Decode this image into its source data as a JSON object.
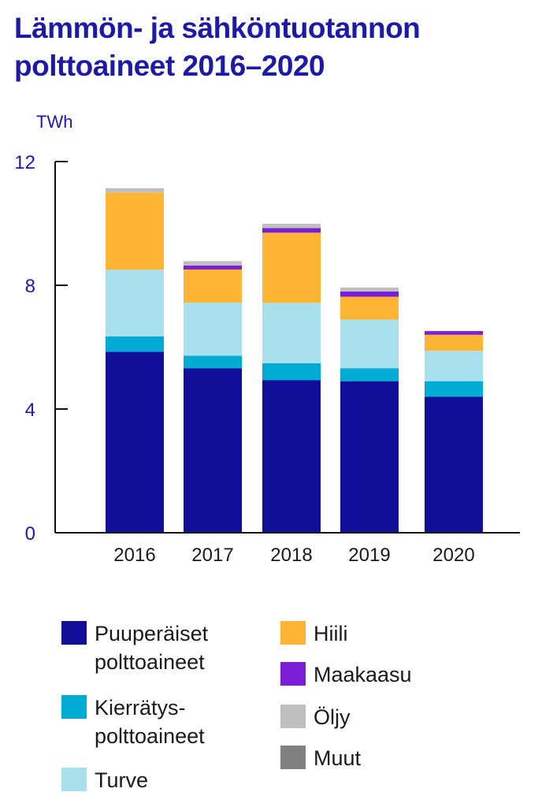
{
  "chart_data": {
    "type": "bar",
    "stacked": true,
    "title_line1": "Lämmön- ja sähköntuotannon",
    "title_line2": "polttoaineet 2016–2020",
    "unit": "TWh",
    "categories": [
      "2016",
      "2017",
      "2018",
      "2019",
      "2020"
    ],
    "y_ticks": [
      "0",
      "4",
      "8",
      "12"
    ],
    "ylim": [
      0,
      12
    ],
    "grid": false,
    "legend_position": "bottom",
    "series": [
      {
        "name": "Puuperäiset polttoaineet",
        "color": "#110e99",
        "values": [
          5.85,
          5.32,
          4.93,
          4.9,
          4.4
        ]
      },
      {
        "name": "Kierrätys-polttoaineet",
        "color": "#00acd3",
        "values": [
          0.5,
          0.4,
          0.55,
          0.42,
          0.5
        ]
      },
      {
        "name": "Turve",
        "color": "#a8e0ee",
        "values": [
          2.15,
          1.72,
          1.95,
          1.57,
          0.98
        ]
      },
      {
        "name": "Hiili",
        "color": "#ffb533",
        "values": [
          2.5,
          1.07,
          2.27,
          0.74,
          0.52
        ]
      },
      {
        "name": "Maakaasu",
        "color": "#7a1fd6",
        "values": [
          0.0,
          0.13,
          0.15,
          0.17,
          0.12
        ]
      },
      {
        "name": "Öljy",
        "color": "#bfbfbf",
        "values": [
          0.14,
          0.14,
          0.14,
          0.13,
          0.0
        ]
      },
      {
        "name": "Muut",
        "color": "#808080",
        "values": [
          0,
          0,
          0,
          0,
          0
        ]
      }
    ]
  },
  "legend": {
    "items": [
      {
        "label_lines": [
          "Puuperäiset",
          "polttoaineet"
        ],
        "color": "#110e99"
      },
      {
        "label_lines": [
          "Kierrätys-",
          "polttoaineet"
        ],
        "color": "#00acd3"
      },
      {
        "label_lines": [
          "Turve"
        ],
        "color": "#a8e0ee"
      },
      {
        "label_lines": [
          "Hiili"
        ],
        "color": "#ffb533"
      },
      {
        "label_lines": [
          "Maakaasu"
        ],
        "color": "#7a1fd6"
      },
      {
        "label_lines": [
          "Öljy"
        ],
        "color": "#bfbfbf"
      },
      {
        "label_lines": [
          "Muut"
        ],
        "color": "#808080"
      }
    ]
  }
}
